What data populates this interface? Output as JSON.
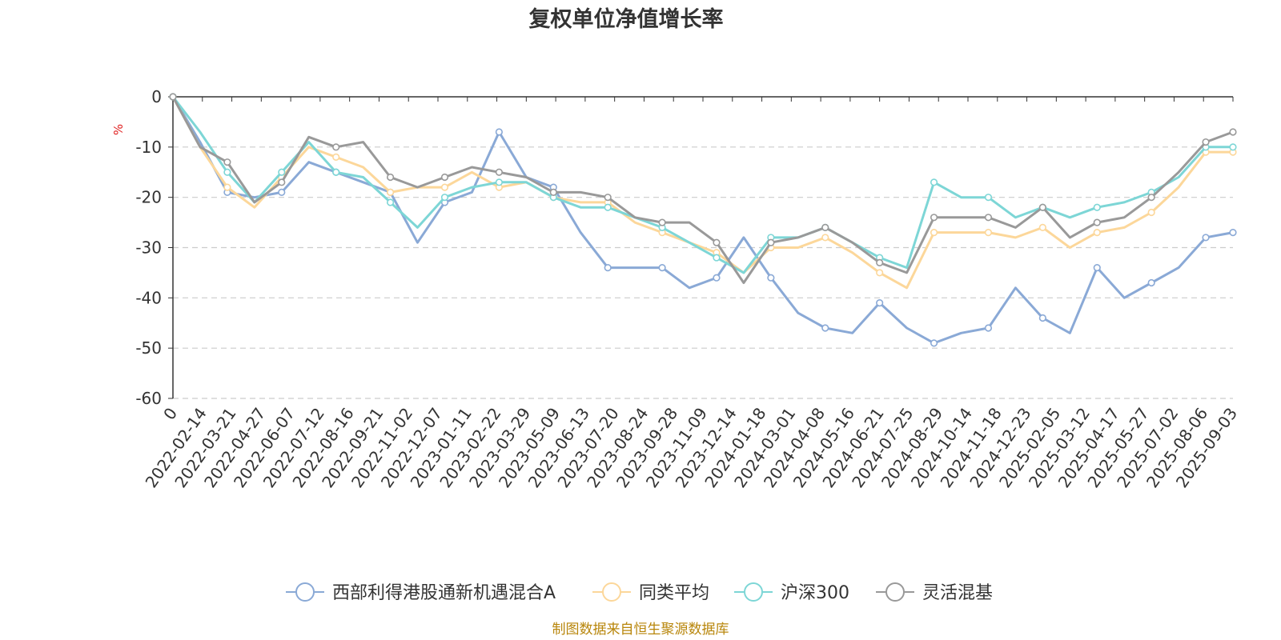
{
  "chart_data": {
    "type": "line",
    "title": "复权单位净值增长率",
    "y_unit": "%",
    "ylim": [
      -60,
      0
    ],
    "y_ticks": [
      0,
      -10,
      -20,
      -30,
      -40,
      -50,
      -60
    ],
    "grid": "horizontal dashed",
    "legend_position": "bottom-center",
    "x_tick_labels": [
      "0",
      "2022-02-14",
      "2022-03-21",
      "2022-04-27",
      "2022-06-07",
      "2022-07-12",
      "2022-08-16",
      "2022-09-21",
      "2022-11-02",
      "2022-12-07",
      "2023-01-11",
      "2023-02-22",
      "2023-03-29",
      "2023-05-09",
      "2023-06-13",
      "2023-07-20",
      "2023-08-24",
      "2023-09-28",
      "2023-11-09",
      "2023-12-14",
      "2024-01-18",
      "2024-03-01",
      "2024-04-08",
      "2024-05-16",
      "2024-06-21",
      "2024-07-25",
      "2024-08-29",
      "2024-10-14",
      "2024-11-18",
      "2024-12-23",
      "2025-02-05",
      "2025-03-12",
      "2025-04-17",
      "2025-05-27",
      "2025-07-02",
      "2025-08-06",
      "2025-09-03"
    ],
    "series": [
      {
        "name": "西部利得港股通新机遇混合A",
        "color": "#8aa9d6",
        "values": [
          0,
          -9,
          -19,
          -20,
          -19,
          -13,
          -15,
          -17,
          -19,
          -29,
          -21,
          -19,
          -7,
          -16,
          -18,
          -27,
          -34,
          -34,
          -34,
          -38,
          -36,
          -28,
          -36,
          -43,
          -46,
          -47,
          -41,
          -46,
          -49,
          -47,
          -46,
          -38,
          -44,
          -47,
          -34,
          -40,
          -37,
          -34,
          -28,
          -27
        ]
      },
      {
        "name": "同类平均",
        "color": "#fcd79a",
        "values": [
          0,
          -10,
          -18,
          -22,
          -16,
          -10,
          -12,
          -14,
          -19,
          -18,
          -18,
          -15,
          -18,
          -17,
          -20,
          -21,
          -21,
          -25,
          -27,
          -29,
          -31,
          -35,
          -30,
          -30,
          -28,
          -31,
          -35,
          -38,
          -27,
          -27,
          -27,
          -28,
          -26,
          -30,
          -27,
          -26,
          -23,
          -18,
          -11,
          -11
        ]
      },
      {
        "name": "沪深300",
        "color": "#7dd6d6",
        "values": [
          0,
          -7,
          -15,
          -21,
          -15,
          -9,
          -15,
          -16,
          -21,
          -26,
          -20,
          -18,
          -17,
          -17,
          -20,
          -22,
          -22,
          -24,
          -26,
          -29,
          -32,
          -35,
          -28,
          -28,
          -26,
          -29,
          -32,
          -34,
          -17,
          -20,
          -20,
          -24,
          -22,
          -24,
          -22,
          -21,
          -19,
          -16,
          -10,
          -10
        ]
      },
      {
        "name": "灵活混基",
        "color": "#999999",
        "values": [
          0,
          -10,
          -13,
          -21,
          -17,
          -8,
          -10,
          -9,
          -16,
          -18,
          -16,
          -14,
          -15,
          -16,
          -19,
          -19,
          -20,
          -24,
          -25,
          -25,
          -29,
          -37,
          -29,
          -28,
          -26,
          -29,
          -33,
          -35,
          -24,
          -24,
          -24,
          -26,
          -22,
          -28,
          -25,
          -24,
          -20,
          -15,
          -9,
          -7
        ]
      }
    ],
    "source_note": "制图数据来自恒生聚源数据库"
  }
}
